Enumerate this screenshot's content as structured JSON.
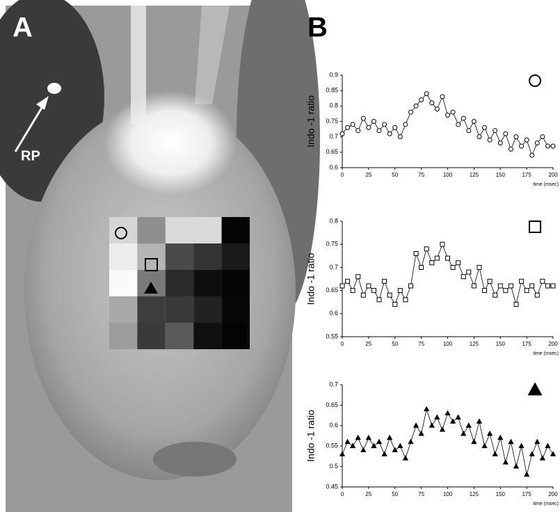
{
  "panels": {
    "a_label": "A",
    "b_label": "B",
    "rp_label": "RP"
  },
  "chart_data": [
    {
      "type": "line",
      "marker": "circle",
      "marker_fill": "#ffffff",
      "color": "#000000",
      "ylabel": "Indo -1 ratio",
      "xlabel": "time (msec)",
      "ylim": [
        0.6,
        0.9
      ],
      "yticks": [
        0.6,
        0.65,
        0.7,
        0.75,
        0.8,
        0.85,
        0.9
      ],
      "xlim": [
        0,
        200
      ],
      "xticks": [
        0,
        25,
        50,
        75,
        100,
        125,
        150,
        175,
        200
      ],
      "x": [
        0,
        5,
        10,
        15,
        20,
        25,
        30,
        35,
        40,
        45,
        50,
        55,
        60,
        65,
        70,
        75,
        80,
        85,
        90,
        95,
        100,
        105,
        110,
        115,
        120,
        125,
        130,
        135,
        140,
        145,
        150,
        155,
        160,
        165,
        170,
        175,
        180,
        185,
        190,
        195,
        200
      ],
      "values": [
        0.71,
        0.73,
        0.74,
        0.72,
        0.76,
        0.73,
        0.75,
        0.72,
        0.74,
        0.71,
        0.73,
        0.7,
        0.74,
        0.78,
        0.8,
        0.82,
        0.84,
        0.81,
        0.79,
        0.83,
        0.77,
        0.78,
        0.74,
        0.76,
        0.72,
        0.75,
        0.7,
        0.73,
        0.69,
        0.72,
        0.68,
        0.71,
        0.66,
        0.7,
        0.67,
        0.69,
        0.64,
        0.68,
        0.7,
        0.67,
        0.67
      ]
    },
    {
      "type": "line",
      "marker": "square",
      "marker_fill": "#ffffff",
      "color": "#000000",
      "ylabel": "Indo -1 ratio",
      "xlabel": "time (msec)",
      "ylim": [
        0.55,
        0.8
      ],
      "yticks": [
        0.55,
        0.6,
        0.65,
        0.7,
        0.75,
        0.8
      ],
      "xlim": [
        0,
        200
      ],
      "xticks": [
        0,
        25,
        50,
        75,
        100,
        125,
        150,
        175,
        200
      ],
      "x": [
        0,
        5,
        10,
        15,
        20,
        25,
        30,
        35,
        40,
        45,
        50,
        55,
        60,
        65,
        70,
        75,
        80,
        85,
        90,
        95,
        100,
        105,
        110,
        115,
        120,
        125,
        130,
        135,
        140,
        145,
        150,
        155,
        160,
        165,
        170,
        175,
        180,
        185,
        190,
        195,
        200
      ],
      "values": [
        0.66,
        0.67,
        0.65,
        0.68,
        0.64,
        0.66,
        0.65,
        0.63,
        0.67,
        0.64,
        0.62,
        0.65,
        0.63,
        0.66,
        0.73,
        0.7,
        0.74,
        0.71,
        0.72,
        0.75,
        0.72,
        0.7,
        0.71,
        0.68,
        0.69,
        0.66,
        0.7,
        0.65,
        0.67,
        0.64,
        0.66,
        0.65,
        0.66,
        0.62,
        0.67,
        0.65,
        0.66,
        0.64,
        0.67,
        0.66,
        0.66
      ]
    },
    {
      "type": "line",
      "marker": "triangle",
      "marker_fill": "#000000",
      "color": "#000000",
      "ylabel": "Indo -1 ratio",
      "xlabel": "time (msec)",
      "ylim": [
        0.45,
        0.7
      ],
      "yticks": [
        0.45,
        0.5,
        0.55,
        0.6,
        0.65,
        0.7
      ],
      "xlim": [
        0,
        200
      ],
      "xticks": [
        0,
        25,
        50,
        75,
        100,
        125,
        150,
        175,
        200
      ],
      "x": [
        0,
        5,
        10,
        15,
        20,
        25,
        30,
        35,
        40,
        45,
        50,
        55,
        60,
        65,
        70,
        75,
        80,
        85,
        90,
        95,
        100,
        105,
        110,
        115,
        120,
        125,
        130,
        135,
        140,
        145,
        150,
        155,
        160,
        165,
        170,
        175,
        180,
        185,
        190,
        195,
        200
      ],
      "values": [
        0.53,
        0.56,
        0.55,
        0.57,
        0.54,
        0.57,
        0.55,
        0.56,
        0.53,
        0.57,
        0.54,
        0.55,
        0.52,
        0.56,
        0.6,
        0.58,
        0.64,
        0.6,
        0.62,
        0.59,
        0.63,
        0.61,
        0.62,
        0.58,
        0.6,
        0.56,
        0.61,
        0.55,
        0.58,
        0.53,
        0.57,
        0.51,
        0.56,
        0.5,
        0.55,
        0.48,
        0.53,
        0.56,
        0.52,
        0.55,
        0.53
      ]
    }
  ]
}
